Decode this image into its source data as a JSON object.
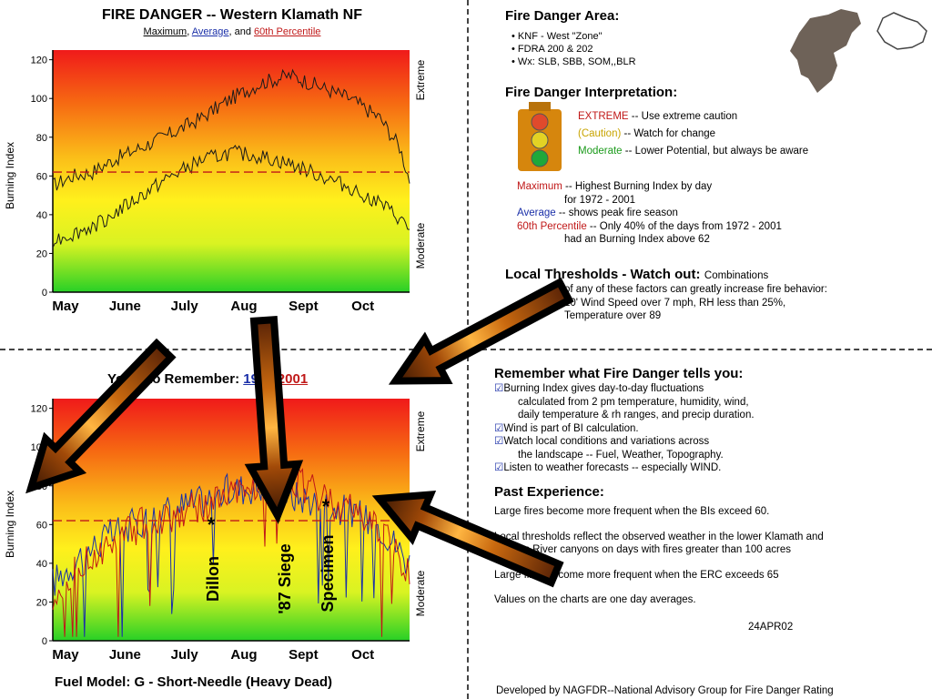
{
  "top_chart": {
    "title": "FIRE DANGER -- Western Klamath NF",
    "subtitle": {
      "max": "Maximum",
      "sep1": ",",
      "avg": "Average",
      "sep2": ", and",
      "pct": "60th Percentile"
    },
    "ylabel": "Burning Index",
    "right_high": "Extreme",
    "right_low": "Moderate"
  },
  "bottom_chart": {
    "title_prefix": "Years to Remember:",
    "year1": "1994",
    "year2": "2001",
    "ylabel": "Burning Index",
    "right_high": "Extreme",
    "right_low": "Moderate",
    "fires": [
      "Dillon",
      "'87 Siege",
      "Specimen"
    ],
    "fuel_model": "Fuel Model: G - Short-Needle (Heavy Dead)"
  },
  "chart_data": [
    {
      "type": "line",
      "title": "FIRE DANGER -- Western Klamath NF",
      "ylabel": "Burning Index",
      "ylim": [
        0,
        125
      ],
      "yticks": [
        0,
        20,
        40,
        60,
        80,
        100,
        120
      ],
      "month_labels": [
        "May",
        "June",
        "July",
        "Aug",
        "Sept",
        "Oct"
      ],
      "series": [
        {
          "name": "Maximum",
          "x": [
            0,
            10,
            20,
            30,
            45,
            60,
            75,
            90,
            105,
            120,
            135,
            150,
            165,
            175,
            180
          ],
          "values": [
            55,
            60,
            62,
            68,
            75,
            82,
            90,
            100,
            108,
            112,
            106,
            100,
            90,
            75,
            58
          ]
        },
        {
          "name": "Average",
          "x": [
            0,
            10,
            20,
            30,
            45,
            60,
            75,
            90,
            105,
            120,
            135,
            150,
            165,
            175,
            180
          ],
          "values": [
            27,
            30,
            34,
            40,
            50,
            60,
            68,
            72,
            70,
            66,
            60,
            54,
            46,
            38,
            32
          ]
        },
        {
          "name": "60th Percentile",
          "x": [
            0,
            180
          ],
          "values": [
            62,
            62
          ]
        }
      ],
      "colors": {
        "Maximum": "#1a1a1a",
        "Average": "#1a1a1a",
        "60th Percentile": "#c01818"
      }
    },
    {
      "type": "line",
      "title": "Years to Remember: 1994 2001",
      "ylabel": "Burning Index",
      "ylim": [
        0,
        125
      ],
      "yticks": [
        0,
        20,
        40,
        60,
        80,
        100,
        120
      ],
      "month_labels": [
        "May",
        "June",
        "July",
        "Aug",
        "Sept",
        "Oct"
      ],
      "series": [
        {
          "name": "1994",
          "x": [
            0,
            15,
            30,
            45,
            60,
            75,
            90,
            105,
            120,
            135,
            150,
            165,
            180
          ],
          "values": [
            30,
            45,
            55,
            62,
            68,
            72,
            78,
            80,
            75,
            72,
            66,
            60,
            40
          ]
        },
        {
          "name": "2001",
          "x": [
            0,
            15,
            30,
            45,
            60,
            75,
            90,
            105,
            120,
            135,
            150,
            165,
            180
          ],
          "values": [
            25,
            40,
            50,
            60,
            64,
            70,
            74,
            80,
            85,
            74,
            68,
            58,
            35
          ]
        },
        {
          "name": "60th Percentile",
          "x": [
            0,
            180
          ],
          "values": [
            62,
            62
          ]
        }
      ],
      "colors": {
        "1994": "#1a2fa8",
        "2001": "#c01818",
        "60th Percentile": "#c01818"
      }
    }
  ],
  "fire_area": {
    "heading": "Fire Danger Area:",
    "bullets": [
      "KNF - West \"Zone\"",
      "FDRA  200 & 202",
      "Wx: SLB, SBB, SOM,,BLR"
    ]
  },
  "interpretation": {
    "heading": "Fire Danger Interpretation:",
    "extreme": "EXTREME",
    "extreme_text": "-- Use extreme caution",
    "caution": "(Caution)",
    "caution_text": "-- Watch for change",
    "moderate": "Moderate",
    "moderate_text": "-- Lower Potential, but always be aware",
    "max_label": "Maximum",
    "max_text": " -- Highest Burning Index by day",
    "max_text2": "for 1972 - 2001",
    "avg_label": "Average",
    "avg_text": " -- shows peak fire season",
    "pct_label": "60th Percentile",
    "pct_text": "  -- Only 40% of the days from 1972 - 2001",
    "pct_text2": "had an Burning Index above 62"
  },
  "thresholds": {
    "heading": "Local Thresholds - Watch out:",
    "heading_tail": "Combinations",
    "lines": [
      "of any of these factors can greatly increase fire behavior:",
      "20' Wind Speed over 7 mph, RH  less than 25%,",
      "Temperature over 89"
    ]
  },
  "remember": {
    "heading": "Remember what Fire Danger tells you:",
    "items": [
      {
        "l1": "Burning Index gives day-to-day fluctuations",
        "l2": "calculated from 2 pm temperature, humidity, wind,",
        "l3": "daily temperature & rh ranges, and precip duration."
      },
      {
        "l1": "Wind is part of BI calculation."
      },
      {
        "l1": "Watch local conditions and variations across",
        "l2": "the landscape -- Fuel, Weather, Topography."
      },
      {
        "l1": "Listen to weather forecasts -- especially WIND."
      }
    ]
  },
  "past": {
    "heading": "Past Experience:",
    "p1": "Large fires become more frequent when the BIs exceed 60.",
    "p2a": "Local thresholds reflect the observed weather in the lower Klamath and",
    "p2b": "Salmon River canyons on days with fires greater than 100 acres",
    "p3": "Large fires become more frequent when the ERC  exceeds 65",
    "p4": "Values on the charts are one day averages.",
    "date": "24APR02"
  },
  "footer": "Developed by NAGFDR--National Advisory Group for Fire Danger Rating"
}
